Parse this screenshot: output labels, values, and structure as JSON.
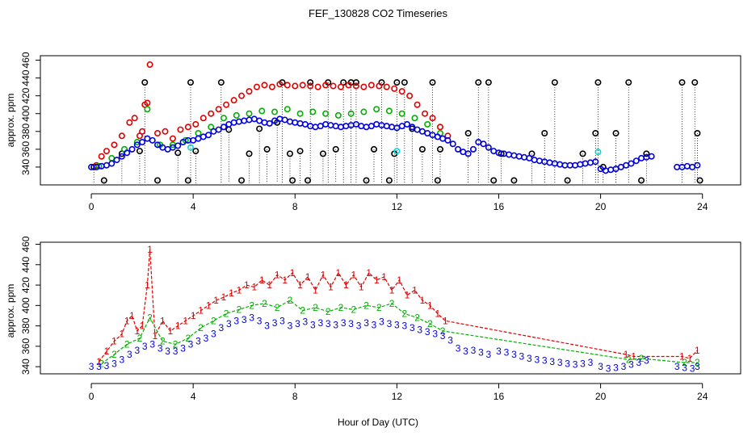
{
  "chart_data": {
    "type": "scatter",
    "title": "FEF_130828  CO2 Timeseries",
    "xlabel": "Hour of Day (UTC)",
    "ylabel": "approx. ppm",
    "xlim": [
      -2,
      25.5
    ],
    "x_ticks": [
      0,
      4,
      8,
      12,
      16,
      20,
      24
    ],
    "colors": {
      "s0": "#000000",
      "s1": "#e00000",
      "s2": "#00b000",
      "s3": "#0000e0",
      "s4": "#00d8d8"
    },
    "panels": [
      {
        "name": "top",
        "ylim": [
          320,
          465
        ],
        "y_ticks": [
          340,
          360,
          380,
          400,
          420,
          440,
          460
        ],
        "marker": "circle",
        "series": [
          {
            "name": "series-0-black",
            "color": "#000000",
            "x": [
              0.1,
              0.5,
              1.2,
              1.9,
              2.1,
              2.6,
              3.4,
              3.8,
              3.9,
              4.1,
              5.1,
              5.4,
              5.9,
              6.2,
              6.6,
              6.9,
              7.3,
              7.5,
              7.8,
              7.9,
              8.2,
              8.5,
              8.6,
              9.1,
              9.3,
              9.6,
              9.9,
              10.2,
              10.4,
              10.8,
              11.1,
              11.4,
              11.7,
              11.9,
              12.0,
              12.3,
              12.6,
              13.0,
              13.4,
              13.6,
              13.7,
              14.8,
              15.2,
              15.6,
              15.8,
              16.1,
              16.6,
              17.3,
              17.8,
              18.2,
              18.7,
              19.3,
              19.8,
              19.9,
              20.1,
              20.6,
              21.1,
              21.6,
              21.8,
              23.2,
              23.7,
              23.8,
              23.9
            ],
            "y": [
              340,
              325,
              355,
              358,
              435,
              325,
              356,
              325,
              435,
              358,
              435,
              382,
              325,
              355,
              383,
              360,
              390,
              435,
              355,
              325,
              358,
              325,
              435,
              355,
              435,
              360,
              435,
              435,
              435,
              325,
              360,
              435,
              325,
              355,
              435,
              435,
              383,
              360,
              435,
              325,
              360,
              378,
              435,
              435,
              325,
              355,
              325,
              355,
              378,
              435,
              325,
              355,
              378,
              435,
              340,
              378,
              435,
              325,
              355,
              435,
              435,
              378,
              325
            ]
          },
          {
            "name": "series-1-red",
            "color": "#e00000",
            "x": [
              0.2,
              0.4,
              0.6,
              0.9,
              1.2,
              1.5,
              1.7,
              1.9,
              2.0,
              2.1,
              2.2,
              2.3,
              2.6,
              2.9,
              3.2,
              3.5,
              3.8,
              4.1,
              4.4,
              4.7,
              5.0,
              5.3,
              5.6,
              5.9,
              6.2,
              6.5,
              6.8,
              7.1,
              7.4,
              7.7,
              8.0,
              8.3,
              8.6,
              8.9,
              9.2,
              9.5,
              9.8,
              10.1,
              10.4,
              10.7,
              11.0,
              11.3,
              11.6,
              11.9,
              12.2,
              12.5,
              12.8,
              13.1,
              13.4,
              13.7,
              14.0
            ],
            "y": [
              342,
              352,
              358,
              365,
              375,
              390,
              395,
              375,
              380,
              410,
              412,
              455,
              378,
              380,
              372,
              382,
              385,
              388,
              395,
              400,
              405,
              410,
              415,
              420,
              425,
              430,
              432,
              430,
              433,
              432,
              431,
              432,
              431,
              430,
              432,
              431,
              430,
              432,
              431,
              430,
              432,
              431,
              430,
              428,
              425,
              420,
              410,
              400,
              395,
              385,
              375
            ]
          },
          {
            "name": "series-2-green",
            "color": "#00b000",
            "x": [
              0.3,
              0.8,
              1.3,
              1.8,
              2.2,
              2.7,
              3.2,
              3.7,
              4.2,
              4.7,
              5.2,
              5.7,
              6.2,
              6.7,
              7.2,
              7.7,
              8.2,
              8.7,
              9.2,
              9.7,
              10.2,
              10.7,
              11.2,
              11.7,
              12.2,
              12.7,
              13.2,
              13.7
            ],
            "y": [
              341,
              350,
              360,
              368,
              405,
              365,
              365,
              370,
              378,
              385,
              395,
              398,
              400,
              403,
              402,
              405,
              400,
              402,
              400,
              398,
              400,
              402,
              405,
              403,
              400,
              395,
              388,
              378
            ]
          },
          {
            "name": "series-3-blue",
            "color": "#0000e0",
            "x": [
              0.0,
              0.2,
              0.4,
              0.6,
              0.8,
              1.0,
              1.2,
              1.4,
              1.6,
              1.8,
              2.0,
              2.2,
              2.4,
              2.6,
              2.8,
              3.0,
              3.2,
              3.4,
              3.6,
              3.8,
              4.0,
              4.2,
              4.4,
              4.6,
              4.8,
              5.0,
              5.2,
              5.4,
              5.6,
              5.8,
              6.0,
              6.2,
              6.4,
              6.6,
              6.8,
              7.0,
              7.2,
              7.4,
              7.6,
              7.8,
              8.0,
              8.2,
              8.4,
              8.6,
              8.8,
              9.0,
              9.2,
              9.4,
              9.6,
              9.8,
              10.0,
              10.2,
              10.4,
              10.6,
              10.8,
              11.0,
              11.2,
              11.4,
              11.6,
              11.8,
              12.0,
              12.2,
              12.4,
              12.6,
              12.8,
              13.0,
              13.2,
              13.4,
              13.6,
              13.8,
              14.0,
              14.2,
              14.4,
              14.6,
              14.8,
              15.0,
              15.2,
              15.4,
              15.6,
              15.8,
              16.0,
              16.2,
              16.4,
              16.6,
              16.8,
              17.0,
              17.2,
              17.4,
              17.6,
              17.8,
              18.0,
              18.2,
              18.4,
              18.6,
              18.8,
              19.0,
              19.2,
              19.4,
              19.6,
              19.8,
              20.0,
              20.2,
              20.4,
              20.6,
              20.8,
              21.0,
              21.2,
              21.4,
              21.6,
              21.8,
              22.0,
              23.0,
              23.2,
              23.4,
              23.6,
              23.8
            ],
            "y": [
              340,
              340,
              341,
              342,
              344,
              348,
              352,
              356,
              360,
              365,
              368,
              372,
              370,
              365,
              362,
              360,
              362,
              364,
              368,
              370,
              370,
              372,
              374,
              376,
              380,
              382,
              385,
              388,
              390,
              391,
              392,
              393,
              394,
              392,
              390,
              389,
              392,
              394,
              393,
              391,
              390,
              389,
              388,
              386,
              385,
              386,
              388,
              387,
              386,
              385,
              386,
              387,
              388,
              386,
              385,
              386,
              388,
              387,
              386,
              385,
              384,
              386,
              388,
              385,
              382,
              380,
              378,
              376,
              374,
              372,
              370,
              366,
              360,
              357,
              355,
              360,
              368,
              366,
              362,
              358,
              356,
              355,
              354,
              353,
              352,
              351,
              350,
              348,
              347,
              346,
              345,
              344,
              343,
              342,
              342,
              342,
              343,
              344,
              345,
              346,
              338,
              336,
              337,
              338,
              340,
              342,
              344,
              347,
              350,
              351,
              352,
              340,
              340,
              341,
              340,
              342
            ]
          },
          {
            "name": "series-4-cyan",
            "color": "#00d8d8",
            "x": [
              3.9,
              12.0,
              19.9
            ],
            "y": [
              362,
              358,
              357
            ]
          }
        ]
      },
      {
        "name": "bottom",
        "ylim": [
          333,
          462
        ],
        "y_ticks": [
          340,
          360,
          380,
          400,
          420,
          440,
          460
        ],
        "marker": "number",
        "series": [
          {
            "name": "series-1-red",
            "label": "1",
            "color": "#e00000",
            "lines": true,
            "x": [
              0.3,
              0.6,
              0.9,
              1.2,
              1.4,
              1.6,
              1.8,
              2.0,
              2.2,
              2.3,
              2.5,
              2.8,
              3.1,
              3.4,
              3.7,
              4.0,
              4.3,
              4.6,
              4.9,
              5.2,
              5.5,
              5.8,
              6.1,
              6.4,
              6.7,
              7.0,
              7.3,
              7.6,
              7.9,
              8.2,
              8.5,
              8.8,
              9.1,
              9.4,
              9.7,
              10.0,
              10.3,
              10.6,
              10.9,
              11.2,
              11.5,
              11.8,
              12.1,
              12.4,
              12.7,
              13.0,
              13.3,
              13.6,
              13.9,
              21.0,
              21.3,
              23.2,
              23.5,
              23.8
            ],
            "y": [
              345,
              355,
              365,
              372,
              385,
              390,
              375,
              380,
              420,
              455,
              370,
              385,
              375,
              380,
              385,
              390,
              395,
              400,
              405,
              408,
              412,
              415,
              420,
              418,
              425,
              420,
              430,
              425,
              432,
              420,
              428,
              415,
              430,
              418,
              432,
              420,
              430,
              418,
              432,
              425,
              428,
              415,
              425,
              410,
              415,
              405,
              400,
              392,
              385,
              352,
              350,
              350,
              348,
              356
            ]
          },
          {
            "name": "series-2-green",
            "label": "2",
            "color": "#00b000",
            "lines": true,
            "x": [
              0.4,
              0.9,
              1.4,
              1.9,
              2.3,
              2.8,
              3.3,
              3.8,
              4.3,
              4.8,
              5.3,
              5.8,
              6.3,
              6.8,
              7.3,
              7.8,
              8.3,
              8.8,
              9.3,
              9.8,
              10.3,
              10.8,
              11.3,
              11.8,
              12.3,
              12.8,
              13.3,
              13.8,
              21.1,
              21.6,
              23.3,
              23.8
            ],
            "y": [
              343,
              352,
              362,
              368,
              388,
              365,
              362,
              368,
              378,
              385,
              392,
              396,
              400,
              402,
              398,
              405,
              395,
              398,
              394,
              398,
              396,
              400,
              398,
              402,
              392,
              388,
              382,
              375,
              347,
              348,
              344,
              344
            ]
          },
          {
            "name": "series-3-blue",
            "label": "3",
            "color": "#0000e0",
            "lines": false,
            "x": [
              0.0,
              0.3,
              0.6,
              0.9,
              1.2,
              1.5,
              1.8,
              2.1,
              2.4,
              2.7,
              3.0,
              3.3,
              3.6,
              3.9,
              4.2,
              4.5,
              4.8,
              5.1,
              5.4,
              5.7,
              6.0,
              6.3,
              6.6,
              6.9,
              7.2,
              7.5,
              7.8,
              8.1,
              8.4,
              8.7,
              9.0,
              9.3,
              9.6,
              9.9,
              10.2,
              10.5,
              10.8,
              11.1,
              11.4,
              11.7,
              12.0,
              12.3,
              12.6,
              12.9,
              13.2,
              13.5,
              13.8,
              14.1,
              14.4,
              14.7,
              15.0,
              15.3,
              15.6,
              16.0,
              16.3,
              16.6,
              16.9,
              17.2,
              17.5,
              17.8,
              18.1,
              18.4,
              18.7,
              19.0,
              19.3,
              19.6,
              20.0,
              20.3,
              20.6,
              20.9,
              21.2,
              21.5,
              21.8,
              23.0,
              23.3,
              23.6,
              23.8
            ],
            "y": [
              340,
              340,
              341,
              343,
              347,
              352,
              356,
              360,
              362,
              358,
              355,
              355,
              358,
              362,
              365,
              368,
              372,
              378,
              382,
              385,
              386,
              388,
              385,
              380,
              383,
              385,
              380,
              382,
              384,
              381,
              383,
              382,
              381,
              383,
              382,
              380,
              383,
              381,
              384,
              382,
              381,
              380,
              378,
              376,
              374,
              372,
              370,
              366,
              358,
              355,
              356,
              354,
              352,
              355,
              354,
              352,
              350,
              348,
              347,
              346,
              345,
              344,
              343,
              342,
              343,
              344,
              340,
              338,
              339,
              340,
              342,
              344,
              346,
              340,
              339,
              338,
              340
            ]
          }
        ]
      }
    ]
  }
}
